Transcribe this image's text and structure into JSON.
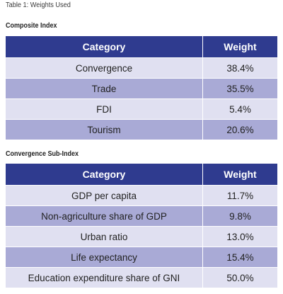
{
  "caption": "Table 1: Weights Used",
  "composite": {
    "title": "Composite Index",
    "headers": [
      "Category",
      "Weight"
    ],
    "rows": [
      {
        "category": "Convergence",
        "weight": "38.4%"
      },
      {
        "category": "Trade",
        "weight": "35.5%"
      },
      {
        "category": "FDI",
        "weight": "5.4%"
      },
      {
        "category": "Tourism",
        "weight": "20.6%"
      }
    ]
  },
  "convergence": {
    "title": "Convergence Sub-Index",
    "headers": [
      "Category",
      "Weight"
    ],
    "rows": [
      {
        "category": "GDP per capita",
        "weight": "11.7%"
      },
      {
        "category": "Non-agriculture share of GDP",
        "weight": "9.8%"
      },
      {
        "category": "Urban ratio",
        "weight": "13.0%"
      },
      {
        "category": "Life expectancy",
        "weight": "15.4%"
      },
      {
        "category": "Education expenditure share of GNI",
        "weight": "50.0%"
      }
    ]
  },
  "colors": {
    "header_bg": "#2f3b8f",
    "row_light": "#e0e0f1",
    "row_dark": "#a9aad6"
  }
}
